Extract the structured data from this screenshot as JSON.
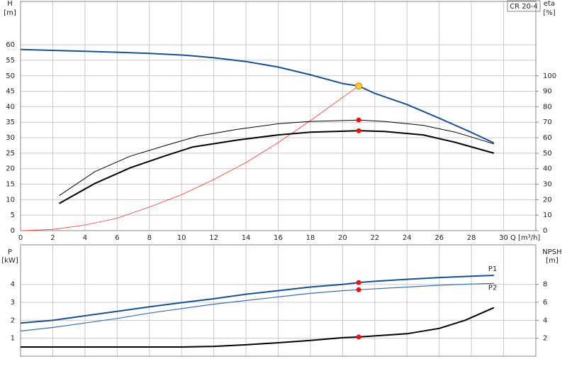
{
  "chart_data": [
    {
      "type": "line",
      "title": "CR 20-4",
      "y_label": "H",
      "y_unit": "[m]",
      "y2_label": "eta",
      "y2_unit": "[%]",
      "x_label": "Q [m³/h]",
      "xlim": [
        0,
        32
      ],
      "xticks": [
        0,
        2,
        4,
        6,
        8,
        10,
        12,
        14,
        16,
        18,
        20,
        22,
        24,
        26,
        28,
        30
      ],
      "ylim": [
        0,
        74
      ],
      "yticks": [
        0,
        5,
        10,
        15,
        20,
        25,
        30,
        35,
        40,
        45,
        50,
        55,
        60
      ],
      "y2lim": [
        0,
        148
      ],
      "y2ticks": [
        0,
        10,
        20,
        30,
        40,
        50,
        60,
        70,
        80,
        90,
        100
      ],
      "grid": true,
      "series": [
        {
          "color": "#1a4f8f",
          "line_width": 2,
          "x": [
            0,
            2,
            4,
            6,
            8,
            10,
            10.7,
            12,
            14,
            16,
            18,
            20,
            21,
            22,
            24,
            26,
            28,
            29.4
          ],
          "values": [
            58.5,
            58.2,
            57.9,
            57.6,
            57.2,
            56.7,
            56.4,
            55.8,
            54.6,
            52.8,
            50.3,
            47.5,
            46.7,
            44.3,
            40.7,
            36.3,
            31.7,
            28.3
          ]
        },
        {
          "color": "#ff3333",
          "line_width": 0.8,
          "x": [
            0,
            2,
            4,
            6,
            8,
            10,
            12,
            14,
            16,
            18,
            20,
            21
          ],
          "values": [
            0,
            0.4,
            1.8,
            4,
            7.6,
            11.6,
            16.5,
            22,
            28.4,
            35.5,
            43,
            46.7
          ]
        },
        {
          "color": "#000000",
          "line_width": 1,
          "axis": "y2",
          "x": [
            2.4,
            4.6,
            6.8,
            9,
            11,
            13.5,
            16,
            18,
            21,
            22.6,
            25,
            27,
            29.4
          ],
          "values": [
            22.6,
            38,
            48,
            55,
            61,
            65.5,
            69,
            70.5,
            71.4,
            70.5,
            68,
            63.6,
            56
          ]
        },
        {
          "color": "#000000",
          "line_width": 2,
          "axis": "y2",
          "x": [
            2.4,
            4.6,
            6.8,
            9,
            10.7,
            13.5,
            16,
            18,
            21,
            22.6,
            25,
            27,
            29.4
          ],
          "values": [
            17.5,
            30.4,
            40.5,
            48.4,
            54,
            58.5,
            61.8,
            63.6,
            64.5,
            64,
            61.8,
            57,
            50
          ]
        }
      ],
      "points": [
        {
          "x": 21,
          "y": 46.7,
          "color": "#ffcc33"
        },
        {
          "x": 21,
          "y": 71.4,
          "axis": "y2",
          "color": "#ee1111"
        },
        {
          "x": 21,
          "y": 64.5,
          "axis": "y2",
          "color": "#ee1111"
        }
      ]
    },
    {
      "type": "line",
      "y_label": "P",
      "y_unit": "[kW]",
      "y2_label": "NPSH",
      "y2_unit": "[m]",
      "xlim": [
        0,
        32
      ],
      "ylim": [
        0,
        6.2
      ],
      "yticks": [
        1,
        2,
        3,
        4
      ],
      "y2lim": [
        0,
        12.4
      ],
      "y2ticks": [
        2,
        4,
        6,
        8
      ],
      "grid": true,
      "series": [
        {
          "name": "P1",
          "color": "#1a4f8f",
          "line_width": 2,
          "x": [
            0,
            2,
            4,
            6,
            8,
            10,
            12,
            14,
            16,
            18,
            20,
            21,
            22,
            24,
            26,
            28,
            29.4
          ],
          "values": [
            1.85,
            2,
            2.25,
            2.5,
            2.75,
            2.98,
            3.2,
            3.45,
            3.65,
            3.85,
            4,
            4.1,
            4.17,
            4.28,
            4.38,
            4.45,
            4.5
          ]
        },
        {
          "name": "P2",
          "color": "#3a6fb0",
          "line_width": 1.2,
          "x": [
            0,
            2,
            4,
            6,
            8,
            10,
            12,
            14,
            16,
            18,
            20,
            21,
            24,
            26,
            28,
            29.4
          ],
          "values": [
            1.4,
            1.6,
            1.85,
            2.1,
            2.4,
            2.65,
            2.9,
            3.1,
            3.3,
            3.5,
            3.65,
            3.7,
            3.85,
            3.95,
            4.02,
            4.05
          ]
        },
        {
          "color": "#000000",
          "line_width": 2,
          "axis": "y2",
          "x": [
            0,
            10,
            12,
            14,
            16,
            18,
            20,
            21,
            24,
            26,
            27.6,
            29.4
          ],
          "values": [
            1.03,
            1.03,
            1.1,
            1.27,
            1.5,
            1.75,
            2.06,
            2.14,
            2.5,
            3.1,
            4,
            5.4
          ]
        }
      ],
      "points": [
        {
          "x": 21,
          "y": 4.1,
          "color": "#ee1111"
        },
        {
          "x": 21,
          "y": 3.7,
          "color": "#ee1111"
        },
        {
          "x": 21,
          "y": 2.14,
          "axis": "y2",
          "color": "#ee1111"
        }
      ]
    }
  ]
}
